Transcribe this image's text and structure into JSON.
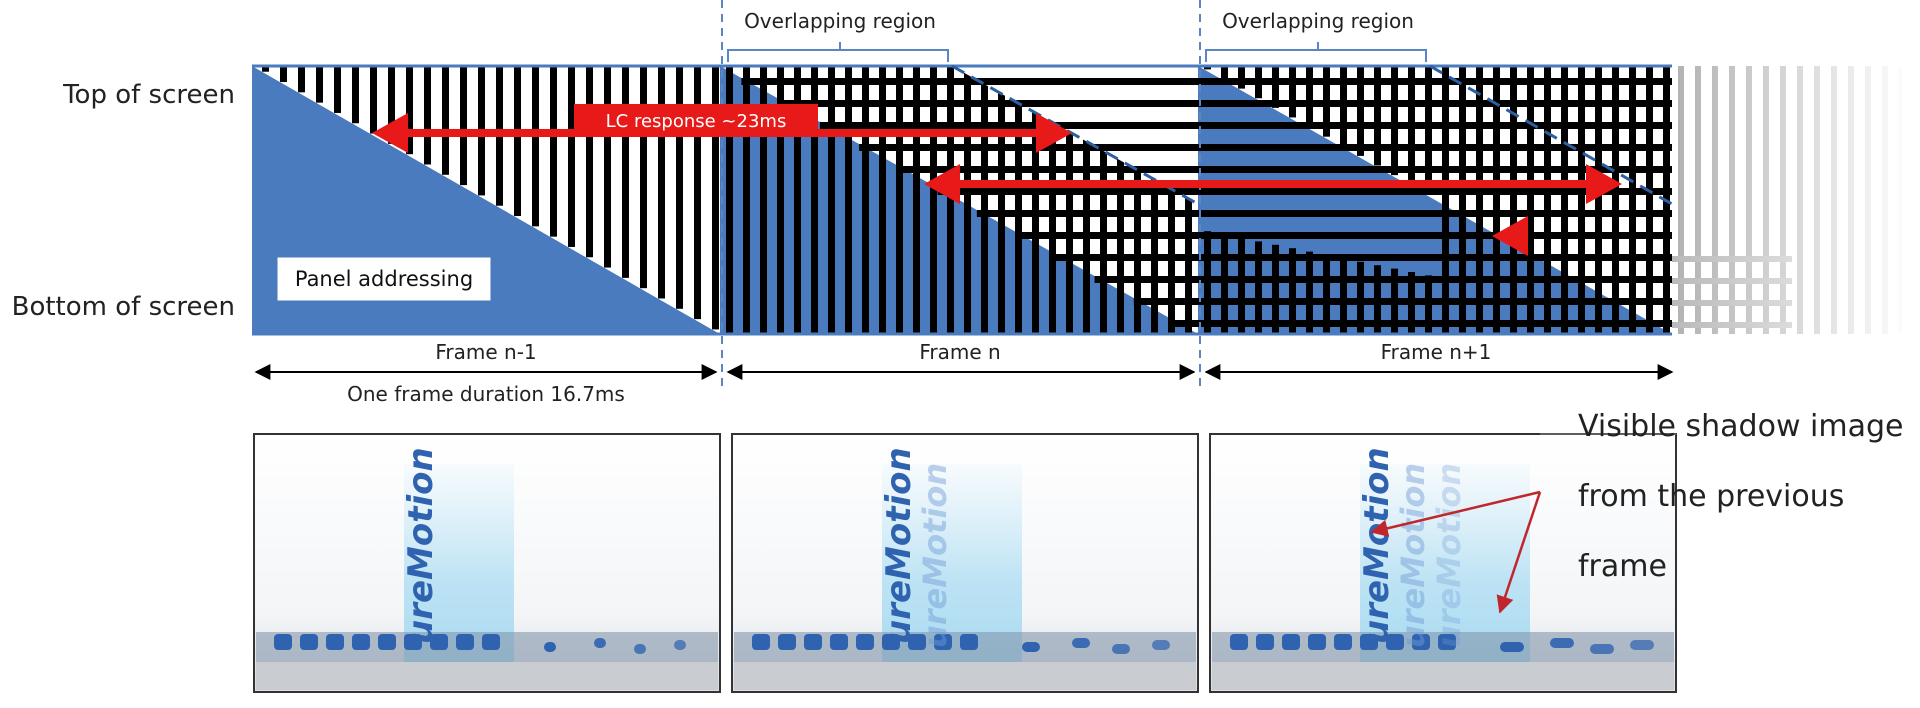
{
  "labels": {
    "top_of_screen": "Top of screen",
    "bottom_of_screen": "Bottom of screen",
    "panel_addressing": "Panel addressing",
    "overlap_1": "Overlapping region",
    "overlap_2": "Overlapping region",
    "lc_response": "LC response ~23ms",
    "frame_prev": "Frame n-1",
    "frame_curr": "Frame n",
    "frame_next": "Frame n+1",
    "frame_duration": "One frame duration 16.7ms",
    "callout_line1": "Visible shadow image",
    "callout_line2": "from the previous",
    "callout_line3": "frame"
  },
  "photos": {
    "text": "ureMotion"
  },
  "colors": {
    "panel_blue": "#4a7bbf",
    "arrow_red": "#e81919",
    "stripe_black": "#000000",
    "guide_blue": "#5b86c4",
    "callout_arrow": "#c0272d"
  }
}
